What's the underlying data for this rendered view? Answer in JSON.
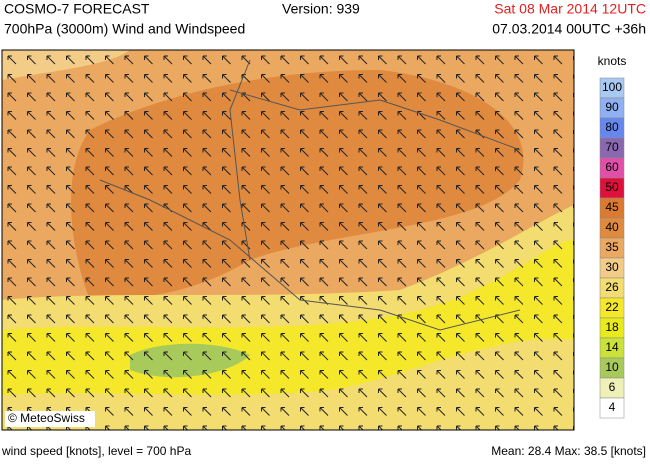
{
  "header": {
    "title": "COSMO-7 FORECAST",
    "subtitle": "700hPa (3000m) Wind and Windspeed",
    "version": "Version: 939",
    "valid_time": "Sat 08 Mar 2014 12UTC",
    "run_time": "07.03.2014 00UTC +36h"
  },
  "map": {
    "copyright": "© MeteoSwiss"
  },
  "legend": {
    "title": "knots",
    "items": [
      {
        "label": "100",
        "color": "#a9c9f2"
      },
      {
        "label": "90",
        "color": "#8fb0f2"
      },
      {
        "label": "80",
        "color": "#6688ee"
      },
      {
        "label": "70",
        "color": "#8a68b0"
      },
      {
        "label": "60",
        "color": "#e050a8"
      },
      {
        "label": "50",
        "color": "#e0103c"
      },
      {
        "label": "45",
        "color": "#dc7a30"
      },
      {
        "label": "40",
        "color": "#e08a40"
      },
      {
        "label": "35",
        "color": "#eba860"
      },
      {
        "label": "30",
        "color": "#f3cd88"
      },
      {
        "label": "26",
        "color": "#f3dc70"
      },
      {
        "label": "22",
        "color": "#f5e82a"
      },
      {
        "label": "18",
        "color": "#e9ea1a"
      },
      {
        "label": "14",
        "color": "#cbe23a"
      },
      {
        "label": "10",
        "color": "#a8ca5a"
      },
      {
        "label": "6",
        "color": "#eef0b8"
      },
      {
        "label": "4",
        "color": "#ffffff"
      }
    ]
  },
  "footer": {
    "left": "wind speed [knots], level = 700 hPa",
    "right": "Mean:  28.4 Max:  38.5 [knots]"
  }
}
